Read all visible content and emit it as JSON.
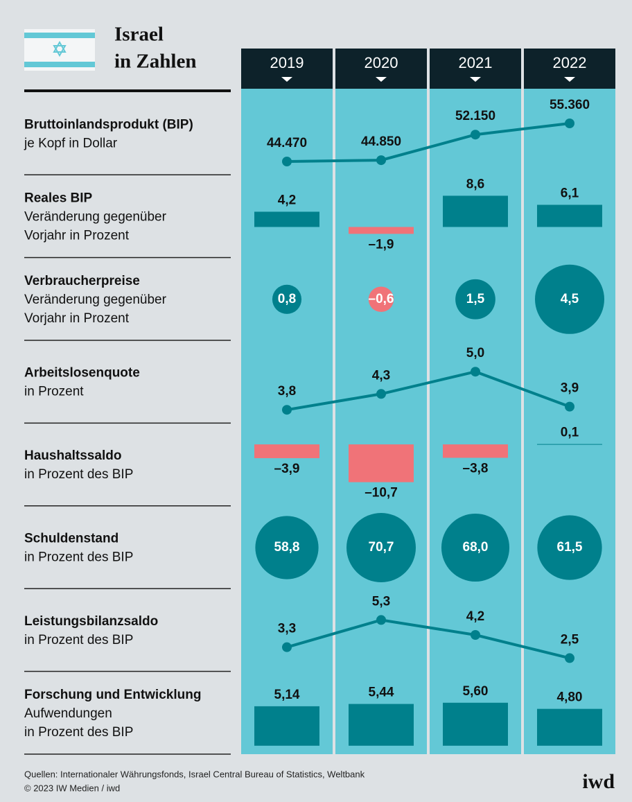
{
  "header": {
    "title": [
      "Israel",
      "in Zahlen"
    ],
    "columns": [
      "2019",
      "2020",
      "2021",
      "2022"
    ]
  },
  "chart_data": [
    {
      "type": "line",
      "title": "Bruttoinlandsprodukt (BIP)",
      "subtitle": [
        "je Kopf in Dollar"
      ],
      "values": [
        44470,
        44850,
        52150,
        55360
      ],
      "value_labels": [
        "44.470",
        "44.850",
        "52.150",
        "55.360"
      ],
      "color": "#00808c"
    },
    {
      "type": "bar",
      "title": "Reales BIP",
      "subtitle": [
        "Veränderung gegenüber",
        "Vorjahr in Prozent"
      ],
      "values": [
        4.2,
        -1.9,
        8.6,
        6.1
      ],
      "value_labels": [
        "4,2",
        "–1,9",
        "8,6",
        "6,1"
      ],
      "color": "#00808c",
      "negative_color": "#f07378"
    },
    {
      "type": "bubble",
      "title": "Verbraucherpreise",
      "subtitle": [
        "Veränderung gegenüber",
        "Vorjahr in Prozent"
      ],
      "values": [
        0.8,
        -0.6,
        1.5,
        4.5
      ],
      "value_labels": [
        "0,8",
        "–0,6",
        "1,5",
        "4,5"
      ],
      "color": "#00808c",
      "negative_color": "#f07378"
    },
    {
      "type": "line",
      "title": "Arbeitslosenquote",
      "subtitle": [
        "in Prozent"
      ],
      "values": [
        3.8,
        4.3,
        5.0,
        3.9
      ],
      "value_labels": [
        "3,8",
        "4,3",
        "5,0",
        "3,9"
      ],
      "color": "#00808c"
    },
    {
      "type": "bar",
      "title": "Haushaltssaldo",
      "subtitle": [
        "in Prozent des BIP"
      ],
      "values": [
        -3.9,
        -10.7,
        -3.8,
        0.1
      ],
      "value_labels": [
        "–3,9",
        "–10,7",
        "–3,8",
        "0,1"
      ],
      "color": "#00808c",
      "negative_color": "#f07378"
    },
    {
      "type": "bubble",
      "title": "Schuldenstand",
      "subtitle": [
        "in Prozent des BIP"
      ],
      "values": [
        58.8,
        70.7,
        68.0,
        61.5
      ],
      "value_labels": [
        "58,8",
        "70,7",
        "68,0",
        "61,5"
      ],
      "color": "#00808c",
      "negative_color": "#f07378"
    },
    {
      "type": "line",
      "title": "Leistungsbilanzsaldo",
      "subtitle": [
        "in Prozent des BIP"
      ],
      "values": [
        3.3,
        5.3,
        4.2,
        2.5
      ],
      "value_labels": [
        "3,3",
        "5,3",
        "4,2",
        "2,5"
      ],
      "color": "#00808c"
    },
    {
      "type": "bar",
      "title": "Forschung und Entwicklung",
      "subtitle": [
        "Aufwendungen",
        "in Prozent des BIP"
      ],
      "values": [
        5.14,
        5.44,
        5.6,
        4.8
      ],
      "value_labels": [
        "5,14",
        "5,44",
        "5,60",
        "4,80"
      ],
      "color": "#00808c",
      "negative_color": "#f07378"
    }
  ],
  "footer": {
    "sources": "Quellen: Internationaler Währungsfonds, Israel Central Bureau of Statistics, Weltbank",
    "copyright": "© 2023 IW Medien / iwd",
    "logo": "iwd"
  }
}
